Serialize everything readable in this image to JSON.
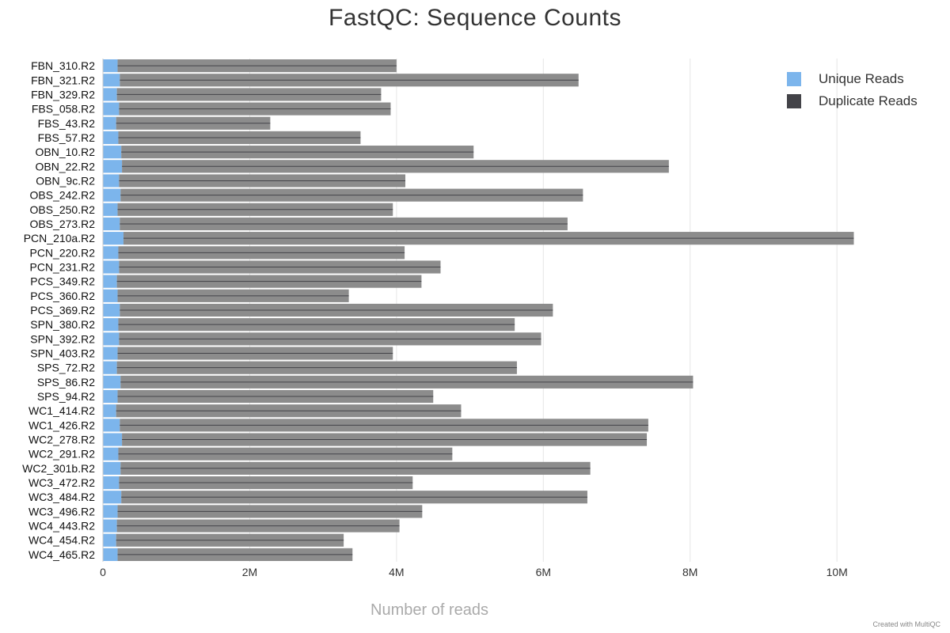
{
  "chart_data": {
    "type": "bar",
    "orientation": "horizontal",
    "stacked": true,
    "title": "FastQC: Sequence Counts",
    "xlabel": "Number of reads",
    "ylabel": "",
    "xlim": [
      0,
      10300000
    ],
    "x_ticks": [
      {
        "value": 0,
        "label": "0"
      },
      {
        "value": 2000000,
        "label": "2M"
      },
      {
        "value": 4000000,
        "label": "4M"
      },
      {
        "value": 6000000,
        "label": "6M"
      },
      {
        "value": 8000000,
        "label": "8M"
      },
      {
        "value": 10000000,
        "label": "10M"
      }
    ],
    "grid": true,
    "legend_position": "top-right",
    "legend": [
      {
        "name": "Unique Reads",
        "color": "#7cb5ec"
      },
      {
        "name": "Duplicate Reads",
        "color": "#434348"
      }
    ],
    "category_labels": [
      "FBN_310.R2",
      "FBN_321.R2",
      "FBN_329.R2",
      "FBS_058.R2",
      "FBS_43.R2",
      "FBS_57.R2",
      "OBN_10.R2",
      "OBN_22.R2",
      "OBN_9c.R2",
      "OBS_242.R2",
      "OBS_250.R2",
      "OBS_273.R2",
      "PCN_210a.R2",
      "PCN_220.R2",
      "PCN_231.R2",
      "PCS_349.R2",
      "PCS_360.R2",
      "PCS_369.R2",
      "SPN_380.R2",
      "SPN_392.R2",
      "SPN_403.R2",
      "SPS_72.R2",
      "SPS_86.R2",
      "SPS_94.R2",
      "WC1_414.R2",
      "WC1_426.R2",
      "WC2_278.R2",
      "WC2_291.R2",
      "WC2_301b.R2",
      "WC3_472.R2",
      "WC3_484.R2",
      "WC3_496.R2",
      "WC4_443.R2",
      "WC4_454.R2",
      "WC4_465.R2"
    ],
    "series": [
      {
        "name": "Unique Reads",
        "values": [
          200000,
          230000,
          190000,
          220000,
          180000,
          210000,
          250000,
          260000,
          220000,
          240000,
          200000,
          230000,
          280000,
          210000,
          220000,
          190000,
          200000,
          230000,
          210000,
          220000,
          200000,
          190000,
          240000,
          200000,
          180000,
          230000,
          260000,
          210000,
          240000,
          220000,
          250000,
          200000,
          190000,
          180000,
          200000
        ]
      },
      {
        "name": "Duplicate Reads",
        "values": [
          3800000,
          6250000,
          3600000,
          3700000,
          2100000,
          3300000,
          4800000,
          7450000,
          3900000,
          6300000,
          3750000,
          6100000,
          9950000,
          3900000,
          4380000,
          4150000,
          3150000,
          5900000,
          5400000,
          5750000,
          3750000,
          5450000,
          7800000,
          4300000,
          4700000,
          7200000,
          7150000,
          4550000,
          6400000,
          4000000,
          6350000,
          4150000,
          3850000,
          3100000,
          3200000
        ]
      }
    ]
  },
  "footer": {
    "credit": "Created with MultiQC"
  }
}
